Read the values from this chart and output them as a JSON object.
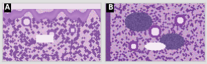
{
  "panel_A_label": "A",
  "panel_B_label": "B",
  "label_bg_color": "#000000",
  "label_text_color": "#ffffff",
  "border_color": "#cccccc",
  "border_lw": 1,
  "fig_bg_color": "#e0e0e0",
  "figsize": [
    3.0,
    0.93
  ],
  "dpi": 100,
  "label_fontsize": 7
}
